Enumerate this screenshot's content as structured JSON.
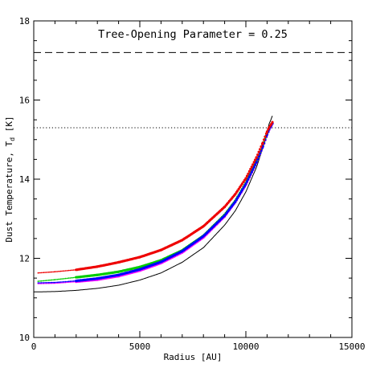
{
  "chart_data": {
    "type": "line",
    "title": "Tree-Opening Parameter = 0.25",
    "xlabel": "Radius [AU]",
    "ylabel": "Dust Temperature, T",
    "ylabel_subscript": "d",
    "ylabel_unit": " [K]",
    "xlim": [
      0,
      15000
    ],
    "ylim": [
      10,
      18
    ],
    "x_ticks": [
      0,
      5000,
      10000,
      15000
    ],
    "y_ticks": [
      10,
      12,
      14,
      16,
      18
    ],
    "x_tick_labels": [
      "0",
      "5000",
      "10000",
      "15000"
    ],
    "y_tick_labels": [
      "10",
      "12",
      "14",
      "16",
      "18"
    ],
    "grid": false,
    "reference_lines": [
      {
        "style": "dashed",
        "y": 17.2,
        "color": "#000000"
      },
      {
        "style": "dotted",
        "y": 15.3,
        "color": "#000000"
      }
    ],
    "series": [
      {
        "style": "line",
        "color": "#000000",
        "x": [
          0,
          1000,
          2000,
          3000,
          4000,
          5000,
          6000,
          7000,
          8000,
          9000,
          9500,
          10000,
          10500,
          10800,
          11000,
          11100,
          11200,
          11250
        ],
        "y": [
          11.15,
          11.16,
          11.19,
          11.24,
          11.32,
          11.45,
          11.63,
          11.9,
          12.27,
          12.84,
          13.2,
          13.68,
          14.3,
          14.79,
          15.2,
          15.4,
          15.53,
          15.6
        ]
      },
      {
        "style": "points",
        "color": "#ff00ff",
        "x": [
          200,
          1000,
          2000,
          3000,
          4000,
          5000,
          6000,
          7000,
          8000,
          9000,
          9500,
          10000,
          10500,
          10800,
          11000,
          11100,
          11200,
          11250
        ],
        "y": [
          11.36,
          11.37,
          11.41,
          11.46,
          11.55,
          11.69,
          11.88,
          12.15,
          12.53,
          13.06,
          13.42,
          13.86,
          14.42,
          14.82,
          15.12,
          15.25,
          15.35,
          15.4
        ]
      },
      {
        "style": "points",
        "color": "#00cc00",
        "x": [
          200,
          1000,
          2000,
          3000,
          4000,
          5000,
          6000,
          7000,
          8000,
          9000,
          9500,
          10000,
          10500,
          10800,
          11000,
          11100,
          11200,
          11250
        ],
        "y": [
          11.42,
          11.46,
          11.52,
          11.58,
          11.66,
          11.78,
          11.95,
          12.2,
          12.57,
          13.1,
          13.45,
          13.9,
          14.45,
          14.85,
          15.15,
          15.28,
          15.37,
          15.42
        ]
      },
      {
        "style": "points",
        "color": "#0000ff",
        "x": [
          200,
          1000,
          2000,
          3000,
          4000,
          5000,
          6000,
          7000,
          8000,
          9000,
          9500,
          10000,
          10500,
          10800,
          11000,
          11100,
          11200,
          11250
        ],
        "y": [
          11.38,
          11.39,
          11.43,
          11.49,
          11.58,
          11.72,
          11.91,
          12.18,
          12.56,
          13.08,
          13.43,
          13.88,
          14.43,
          14.83,
          15.13,
          15.26,
          15.36,
          15.41
        ]
      },
      {
        "style": "points",
        "color": "#ee0000",
        "x": [
          200,
          1000,
          2000,
          3000,
          4000,
          5000,
          6000,
          7000,
          8000,
          9000,
          9500,
          10000,
          10500,
          10800,
          11000,
          11100,
          11200,
          11250
        ],
        "y": [
          11.63,
          11.66,
          11.71,
          11.79,
          11.9,
          12.03,
          12.21,
          12.46,
          12.81,
          13.3,
          13.62,
          14.02,
          14.55,
          14.92,
          15.2,
          15.31,
          15.39,
          15.44
        ]
      }
    ]
  }
}
